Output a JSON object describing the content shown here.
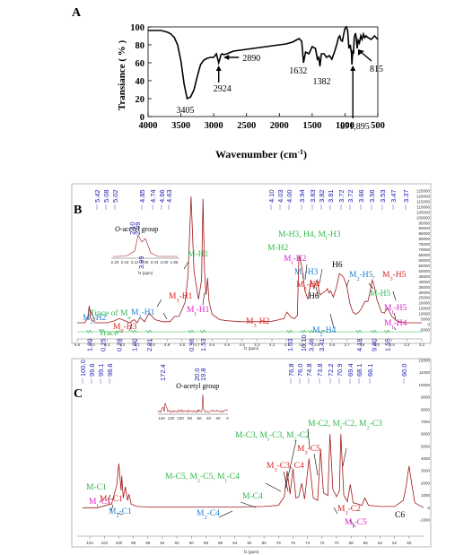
{
  "panels": [
    {
      "panel_label": "A",
      "chart_data": {
        "type": "line",
        "title": "",
        "xlabel_pre": "Wavenumber (cm",
        "xlabel_sup": "-1",
        "xlabel_post": ")",
        "ylabel": "Transiance ( % )",
        "xlim": [
          4000,
          500
        ],
        "ylim": [
          0,
          100
        ],
        "xticks": [
          4000,
          3500,
          3000,
          2500,
          2000,
          1500,
          1000,
          500
        ],
        "yticks": [
          0,
          20,
          40,
          60,
          80,
          100
        ],
        "series": [
          {
            "x": [
              4000,
              3900,
              3800,
              3700,
              3650,
              3600,
              3550,
              3500,
              3450,
              3405,
              3350,
              3300,
              3250,
              3200,
              3150,
              3100,
              3050,
              3000,
              2960,
              2924,
              2900,
              2890,
              2870,
              2850,
              2800,
              2700,
              2600,
              2500,
              2400,
              2300,
              2200,
              2100,
              2000,
              1900,
              1800,
              1750,
              1700,
              1660,
              1632,
              1600,
              1550,
              1500,
              1450,
              1420,
              1400,
              1382,
              1360,
              1320,
              1280,
              1240,
              1200,
              1160,
              1120,
              1100,
              1080,
              1060,
              1040,
              1020,
              1000,
              980,
              960,
              940,
              920,
              900,
              895,
              880,
              871,
              860,
              840,
              830,
              815,
              800,
              780,
              760,
              740,
              720,
              700,
              680,
              650,
              600,
              550,
              500
            ],
            "y": [
              96,
              96,
              96,
              94,
              92,
              88,
              80,
              62,
              36,
              20,
              22,
              30,
              45,
              58,
              63,
              65,
              66,
              66,
              70,
              60,
              66,
              69,
              70,
              69,
              70,
              73,
              74,
              75,
              76,
              77,
              78,
              79,
              80,
              81,
              83,
              85,
              87,
              84,
              60,
              72,
              70,
              78,
              76,
              64,
              66,
              56,
              70,
              70,
              66,
              68,
              64,
              72,
              82,
              88,
              90,
              85,
              84,
              92,
              98,
              100,
              96,
              76,
              80,
              70,
              58,
              74,
              70,
              88,
              93,
              88,
              76,
              85,
              82,
              90,
              86,
              92,
              88,
              90,
              88,
              86,
              90,
              86
            ]
          }
        ],
        "annotations": [
          "3405",
          "2924",
          "2890",
          "1632",
          "1382",
          "871,895",
          "815"
        ]
      }
    },
    {
      "panel_label": "B",
      "chart_data": {
        "type": "line",
        "title": "",
        "xlabel": "f1 (ppm)",
        "xlim": [
          5.5,
          3.2
        ],
        "xticks": [
          "5.5",
          "5.4",
          "5.3",
          "5.2",
          "5.1",
          "5.0",
          "4.9",
          "4.8",
          "4.7",
          "4.6",
          "4.5",
          "4.4",
          "4.3",
          "4.2",
          "4.1",
          "4.0",
          "3.9",
          "3.8",
          "3.7",
          "3.6",
          "3.5",
          "3.4",
          "3.3",
          "3.2"
        ],
        "right_axis_ticks": [
          "125000",
          "120000",
          "115000",
          "110000",
          "105000",
          "100000",
          "95000",
          "90000",
          "85000",
          "80000",
          "75000",
          "70000",
          "65000",
          "60000",
          "55000",
          "50000",
          "45000",
          "40000",
          "35000",
          "30000",
          "25000",
          "20000",
          "15000",
          "10000",
          "5000",
          "0",
          "-5000"
        ],
        "peak_labels": [
          "5.42",
          "5.08",
          "5.02",
          "4.85",
          "4.74",
          "4.66",
          "4.63",
          "4.10",
          "4.03",
          "4.00",
          "3.94",
          "3.83",
          "3.82",
          "3.81",
          "3.72",
          "3.72",
          "3.66",
          "3.56",
          "3.53",
          "3.47",
          "3.37"
        ],
        "integrals": [
          {
            "pos": 5.42,
            "value": "1.99"
          },
          {
            "pos": 5.33,
            "value": "0.25"
          },
          {
            "pos": 5.22,
            "value": "0.28"
          },
          {
            "pos": 5.12,
            "value": "1.00"
          },
          {
            "pos": 5.02,
            "value": "2.01"
          },
          {
            "pos": 4.74,
            "value": "0.96"
          },
          {
            "pos": 4.66,
            "value": "1.53"
          },
          {
            "pos": 4.08,
            "value": "1.03"
          },
          {
            "pos": 3.99,
            "value": "10.10"
          },
          {
            "pos": 3.94,
            "value": "3.46"
          },
          {
            "pos": 3.87,
            "value": "3.41"
          },
          {
            "pos": 3.62,
            "value": "4.18"
          },
          {
            "pos": 3.52,
            "value": "9.80"
          },
          {
            "pos": 3.43,
            "value": "1.55"
          }
        ],
        "inset": {
          "label_italic": "O",
          "label_rest": "-acetyl group",
          "peaks": [
            "2.10",
            "2.09"
          ],
          "integral": "3.99",
          "ticks": [
            "2.20",
            "2.16",
            "2.12",
            "2.08",
            "2.04",
            "2.00",
            "1.96"
          ],
          "xlabel": "f1 (ppm)"
        },
        "series": [
          {
            "x": [
              5.5,
              5.45,
              5.43,
              5.42,
              5.41,
              5.38,
              5.33,
              5.3,
              5.25,
              5.22,
              5.18,
              5.15,
              5.12,
              5.1,
              5.08,
              5.05,
              5.02,
              4.98,
              4.93,
              4.88,
              4.85,
              4.82,
              4.78,
              4.76,
              4.74,
              4.72,
              4.69,
              4.67,
              4.66,
              4.65,
              4.64,
              4.63,
              4.62,
              4.6,
              4.55,
              4.5,
              4.45,
              4.4,
              4.3,
              4.2,
              4.15,
              4.12,
              4.1,
              4.07,
              4.05,
              4.03,
              4.02,
              4.0,
              3.98,
              3.96,
              3.94,
              3.92,
              3.9,
              3.88,
              3.86,
              3.84,
              3.83,
              3.82,
              3.81,
              3.79,
              3.77,
              3.75,
              3.73,
              3.72,
              3.7,
              3.68,
              3.66,
              3.64,
              3.62,
              3.6,
              3.58,
              3.56,
              3.55,
              3.53,
              3.52,
              3.5,
              3.48,
              3.47,
              3.45,
              3.43,
              3.4,
              3.37,
              3.35,
              3.3,
              3.25,
              3.2
            ],
            "y": [
              0,
              0,
              4000,
              16000,
              4000,
              0,
              0,
              0,
              2000,
              4000,
              2000,
              0,
              3000,
              0,
              5000,
              1000,
              9000,
              3000,
              1000,
              1000,
              6000,
              6000,
              19000,
              44000,
              118000,
              48000,
              22000,
              40000,
              116000,
              48000,
              26000,
              42000,
              20000,
              8000,
              3000,
              2000,
              1500,
              1000,
              1000,
              1500,
              3000,
              4000,
              10000,
              5000,
              4000,
              7000,
              63000,
              52000,
              30000,
              22000,
              40000,
              32000,
              40000,
              26000,
              28000,
              30000,
              32000,
              28000,
              30000,
              24000,
              33000,
              46000,
              44000,
              42000,
              34000,
              18000,
              10000,
              8000,
              10000,
              14000,
              20000,
              20000,
              26000,
              40000,
              36000,
              22000,
              14000,
              10000,
              9000,
              14000,
              6000,
              2000,
              1000,
              0,
              0,
              0
            ]
          }
        ],
        "annotations": [
          {
            "text": "M-H3, H4, M",
            "sub": "I",
            "post": "-H3",
            "color": "#2eb84a"
          },
          {
            "text": "M-H2",
            "color": "#2eb84a"
          },
          {
            "text": "M",
            "sub": "I",
            "post": "-H2",
            "color": "#e020d0"
          },
          {
            "text": "M",
            "sub": "2",
            "post": "-H3",
            "color": "#1c7fd8"
          },
          {
            "text": "M",
            "sub": "3",
            "post": "-H4",
            "color": "#e02020"
          },
          {
            "text": "H6",
            "color": "#000000"
          },
          {
            "text": "H6",
            "color": "#000000"
          },
          {
            "text": "M",
            "sub": "2",
            "post": "-H5,",
            "color": "#1c7fd8"
          },
          {
            "text": "M",
            "sub": "3",
            "post": "-H5",
            "color": "#e02020"
          },
          {
            "text": "M-H1",
            "color": "#2eb84a"
          },
          {
            "text": "M",
            "sub": "3",
            "post": "-H1",
            "color": "#e02020"
          },
          {
            "text": "M",
            "sub": "2",
            "post": "-H1",
            "color": "#1c7fd8"
          },
          {
            "text": "M",
            "sub": "I",
            "post": "-H1",
            "color": "#e020d0"
          },
          {
            "text": "M",
            "sub": "2",
            "post": "-H2",
            "color": "#1c7fd8"
          },
          {
            "text": "Trace of M",
            "sub": "α",
            "color": "#2eb84a"
          },
          {
            "text": "M",
            "sub": "3",
            "post": "-H3",
            "color": "#e02020"
          },
          {
            "text": "Trace",
            "color": "#2eb84a"
          },
          {
            "text": "M",
            "sub": "3",
            "post": "-H2",
            "color": "#e02020"
          },
          {
            "text": "M",
            "sub": "2",
            "post": "-H4",
            "color": "#1c7fd8"
          },
          {
            "text": "M-H5",
            "color": "#2eb84a"
          },
          {
            "text": "M",
            "sub": "I",
            "post": "-H5",
            "color": "#e020d0"
          },
          {
            "text": "M",
            "sub": "I",
            "post": "-H4",
            "color": "#e020d0"
          }
        ]
      }
    },
    {
      "panel_label": "C",
      "chart_data": {
        "type": "line",
        "title": "",
        "xlabel": "f1 (ppm)",
        "xlim": [
          105,
          58
        ],
        "xticks": [
          "104",
          "102",
          "100",
          "98",
          "96",
          "94",
          "92",
          "90",
          "88",
          "86",
          "84",
          "82",
          "80",
          "78",
          "76",
          "74",
          "72",
          "70",
          "68",
          "66",
          "64",
          "62",
          "60"
        ],
        "right_axis_ticks": [
          "12000",
          "11000",
          "10000",
          "9000",
          "8000",
          "7000",
          "6000",
          "5000",
          "4000",
          "3000",
          "2000",
          "1000",
          "0",
          "-1000"
        ],
        "peak_labels": [
          "100.0",
          "99.6",
          "99.1",
          "98.6",
          "76.8",
          "76.0",
          "74.8",
          "73.8",
          "72.2",
          "70.9",
          "69.4",
          "68.1",
          "66.1",
          "60.0"
        ],
        "inset": {
          "label_italic": "O",
          "label_rest": "-acetyl group",
          "peaks": [
            "172.4",
            "20.0",
            "19.8"
          ],
          "ticks": [
            "140",
            "120",
            "100",
            "80",
            "60",
            "40",
            "20",
            "0"
          ]
        },
        "series": [
          {
            "x": [
              105,
              103,
              101,
              100.3,
              100.0,
              99.7,
              99.6,
              99.4,
              99.1,
              98.8,
              98.6,
              98.3,
              97.5,
              95,
              90,
              85,
              80,
              78,
              77.2,
              76.8,
              76.4,
              76.0,
              75.6,
              75.2,
              74.8,
              74.4,
              73.8,
              73.2,
              72.6,
              72.2,
              71.8,
              71.2,
              70.9,
              70.5,
              70.0,
              69.6,
              69.4,
              69.0,
              68.5,
              68.1,
              67.7,
              67.0,
              66.5,
              66.1,
              65.6,
              64,
              62,
              60.8,
              60.4,
              60.0,
              59.6,
              59.2,
              58
            ],
            "y": [
              0,
              0,
              300,
              1800,
              3600,
              1400,
              2600,
              800,
              1700,
              600,
              1100,
              300,
              100,
              50,
              50,
              50,
              100,
              200,
              900,
              3000,
              1100,
              3200,
              800,
              900,
              2000,
              700,
              4000,
              800,
              600,
              4800,
              1200,
              1000,
              6000,
              1500,
              900,
              1400,
              6000,
              1000,
              500,
              1900,
              400,
              300,
              200,
              800,
              200,
              100,
              100,
              600,
              1800,
              3400,
              1800,
              400,
              0
            ]
          }
        ],
        "annotations": [
          {
            "text": "M-C3, M",
            "sub": "I",
            "post": "-C3, M",
            "sub2": "2",
            "post2": "-C2",
            "color": "#2eb84a"
          },
          {
            "text": "M-C2, M",
            "sub": "I",
            "post": "-C2, M",
            "sub2": "2",
            "post2": "-C3",
            "color": "#2eb84a"
          },
          {
            "text": "M",
            "sub": "3",
            "post": "-C5",
            "color": "#e02020"
          },
          {
            "text": "M-C5, M",
            "sub": "2",
            "post": "-C5, M",
            "sub2": "I",
            "post2": "-C4",
            "color": "#2eb84a"
          },
          {
            "text": "M",
            "sub": "3",
            "post": "-C3, C4",
            "color": "#e02020"
          },
          {
            "text": "M-C1",
            "color": "#2eb84a"
          },
          {
            "text": "M-C4",
            "color": "#2eb84a"
          },
          {
            "text": "M",
            "sub": "I",
            "post": "-C1",
            "color": "#e020d0"
          },
          {
            "text": "M",
            "sub": "3",
            "post": "-C1",
            "color": "#e02020"
          },
          {
            "text": "M",
            "sub": "2",
            "post": "-C1",
            "color": "#1c7fd8"
          },
          {
            "text": "M",
            "sub": "2",
            "post": "-C4",
            "color": "#1c7fd8"
          },
          {
            "text": "M",
            "sub": "3",
            "post": "-C2",
            "color": "#e02020"
          },
          {
            "text": "M",
            "sub": "I",
            "post": "-C5",
            "color": "#e020d0"
          },
          {
            "text": "C6",
            "color": "#000000"
          }
        ]
      }
    }
  ]
}
